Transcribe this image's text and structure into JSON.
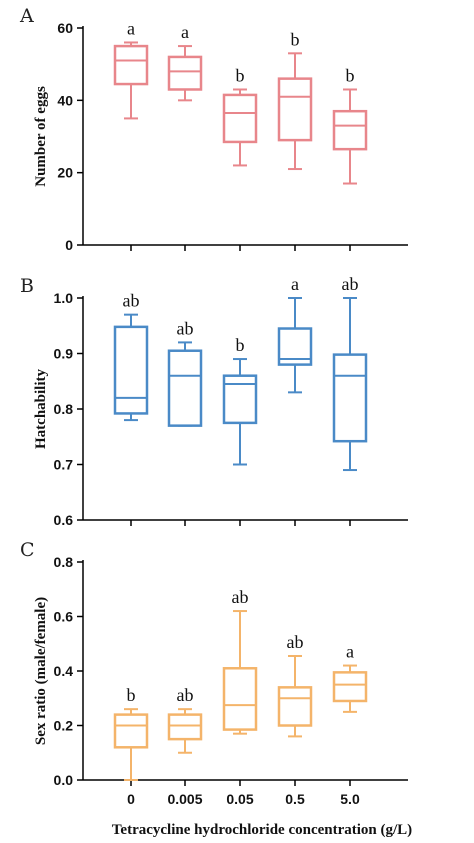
{
  "figure": {
    "xlabel": "Tetracycline hydrochloride concentration (g/L)",
    "categories": [
      "0",
      "0.005",
      "0.05",
      "0.5",
      "5.0"
    ]
  },
  "chart_data": [
    {
      "type": "box",
      "panel": "A",
      "ylabel": "Number of eggs",
      "ylim": [
        0,
        60
      ],
      "yticks": [
        0,
        20,
        40,
        60
      ],
      "ytick_labels": [
        "0",
        "20",
        "40",
        "60"
      ],
      "color": "#e8868b",
      "categories": [
        "0",
        "0.005",
        "0.05",
        "0.5",
        "5.0"
      ],
      "boxes": [
        {
          "min": 35,
          "q1": 44.5,
          "median": 51,
          "q3": 55,
          "max": 56
        },
        {
          "min": 40,
          "q1": 43,
          "median": 48,
          "q3": 52,
          "max": 55
        },
        {
          "min": 22,
          "q1": 28.5,
          "median": 36.5,
          "q3": 41.5,
          "max": 43
        },
        {
          "min": 21,
          "q1": 29,
          "median": 41,
          "q3": 46,
          "max": 53
        },
        {
          "min": 17,
          "q1": 26.5,
          "median": 33,
          "q3": 37,
          "max": 43
        }
      ],
      "letters": [
        "a",
        "a",
        "b",
        "b",
        "b"
      ]
    },
    {
      "type": "box",
      "panel": "B",
      "ylabel": "Hatchability",
      "ylim": [
        0.6,
        1.0
      ],
      "yticks": [
        0.6,
        0.7,
        0.8,
        0.9,
        1.0
      ],
      "ytick_labels": [
        "0.6",
        "0.7",
        "0.8",
        "0.9",
        "1.0"
      ],
      "color": "#4a8ac7",
      "categories": [
        "0",
        "0.005",
        "0.05",
        "0.5",
        "5.0"
      ],
      "boxes": [
        {
          "min": 0.78,
          "q1": 0.792,
          "median": 0.82,
          "q3": 0.948,
          "max": 0.97
        },
        {
          "min": 0.77,
          "q1": 0.77,
          "median": 0.86,
          "q3": 0.905,
          "max": 0.92
        },
        {
          "min": 0.7,
          "q1": 0.775,
          "median": 0.845,
          "q3": 0.86,
          "max": 0.89
        },
        {
          "min": 0.83,
          "q1": 0.88,
          "median": 0.89,
          "q3": 0.945,
          "max": 1.0
        },
        {
          "min": 0.69,
          "q1": 0.742,
          "median": 0.86,
          "q3": 0.898,
          "max": 1.0
        }
      ],
      "letters": [
        "ab",
        "ab",
        "b",
        "a",
        "ab"
      ]
    },
    {
      "type": "box",
      "panel": "C",
      "ylabel": "Sex ratio (male/female)",
      "ylim": [
        0.0,
        0.8
      ],
      "yticks": [
        0.0,
        0.2,
        0.4,
        0.6,
        0.8
      ],
      "ytick_labels": [
        "0.0",
        "0.2",
        "0.4",
        "0.6",
        "0.8"
      ],
      "color": "#f4b46a",
      "categories": [
        "0",
        "0.005",
        "0.05",
        "0.5",
        "5.0"
      ],
      "boxes": [
        {
          "min": 0.0,
          "q1": 0.12,
          "median": 0.2,
          "q3": 0.24,
          "max": 0.26
        },
        {
          "min": 0.1,
          "q1": 0.15,
          "median": 0.2,
          "q3": 0.24,
          "max": 0.26
        },
        {
          "min": 0.17,
          "q1": 0.185,
          "median": 0.275,
          "q3": 0.41,
          "max": 0.62
        },
        {
          "min": 0.16,
          "q1": 0.2,
          "median": 0.3,
          "q3": 0.34,
          "max": 0.455
        },
        {
          "min": 0.25,
          "q1": 0.29,
          "median": 0.35,
          "q3": 0.395,
          "max": 0.42
        }
      ],
      "letters": [
        "b",
        "ab",
        "ab",
        "ab",
        "a"
      ]
    }
  ]
}
